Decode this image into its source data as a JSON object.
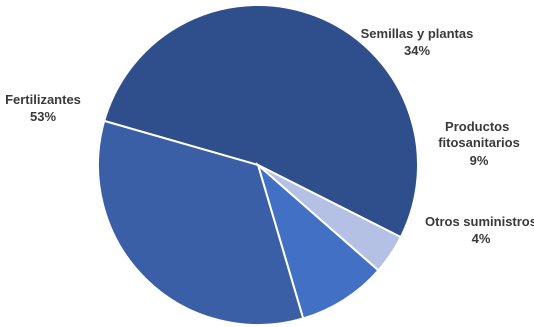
{
  "chart_data": {
    "type": "pie",
    "slices": [
      {
        "label": "Fertilizantes",
        "value": 53,
        "value_label": "53%",
        "color": "#2f4f8c"
      },
      {
        "label": "Otros suministros",
        "value": 4,
        "value_label": "4%",
        "color": "#b4c0e4"
      },
      {
        "label": "Productos fitosanitarios",
        "value": 9,
        "value_label": "9%",
        "color": "#4270c4"
      },
      {
        "label": "Semillas y plantas",
        "value": 34,
        "value_label": "34%",
        "color": "#3a5fa6"
      }
    ],
    "legend": "none",
    "title": ""
  }
}
